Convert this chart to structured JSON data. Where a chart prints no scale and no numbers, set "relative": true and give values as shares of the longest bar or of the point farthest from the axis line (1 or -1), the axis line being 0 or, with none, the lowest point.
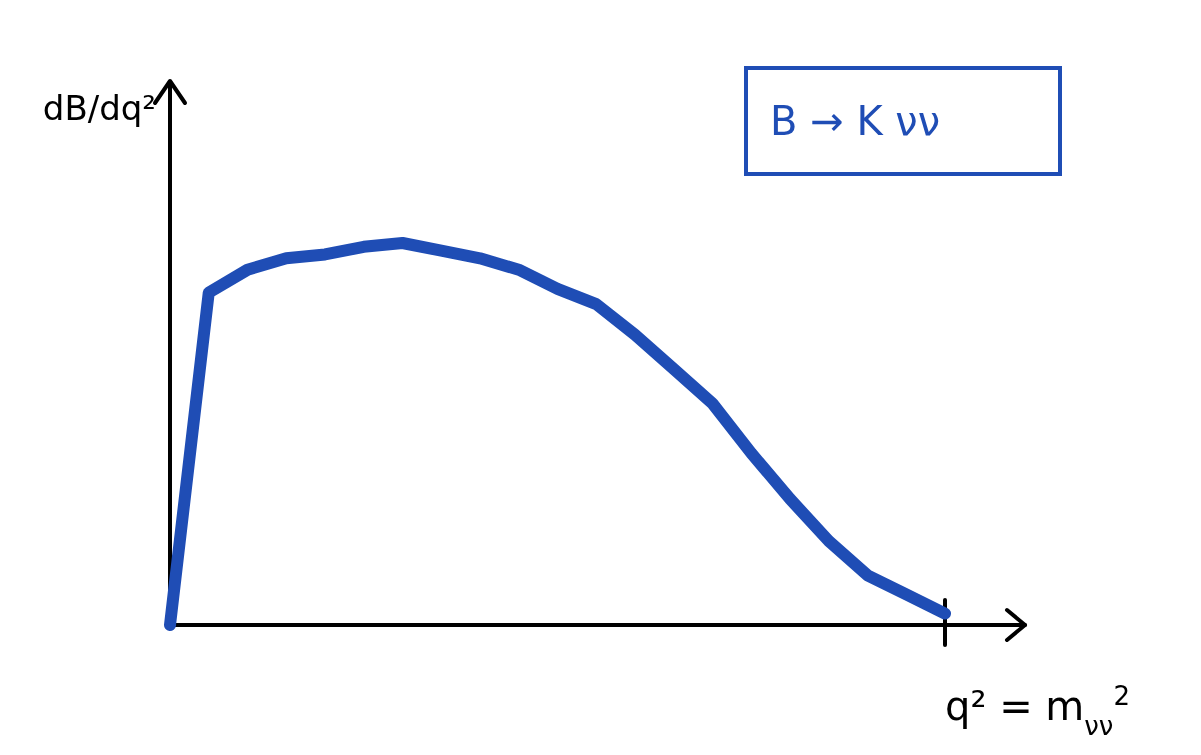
{
  "chart_data": {
    "type": "line",
    "relative": true,
    "xlabel": "q² = m$_{νν}$$^{2}$",
    "ylabel": "dB/dq²",
    "annotations": [
      "B → K νν"
    ],
    "categories": [
      null,
      null,
      null,
      null,
      null,
      null,
      null,
      null,
      null,
      null,
      null,
      null,
      null,
      null,
      null,
      null,
      null,
      null,
      null,
      null,
      null
    ],
    "series": [
      {
        "color": "#1f4db5",
        "values": [
          0,
          0.87,
          0.93,
          0.96,
          0.97,
          0.99,
          1,
          0.98,
          0.96,
          0.93,
          0.88,
          0.84,
          0.76,
          0.67,
          0.58,
          0.45,
          0.33,
          0.22,
          0.13,
          0.08,
          0.03
        ]
      }
    ]
  }
}
